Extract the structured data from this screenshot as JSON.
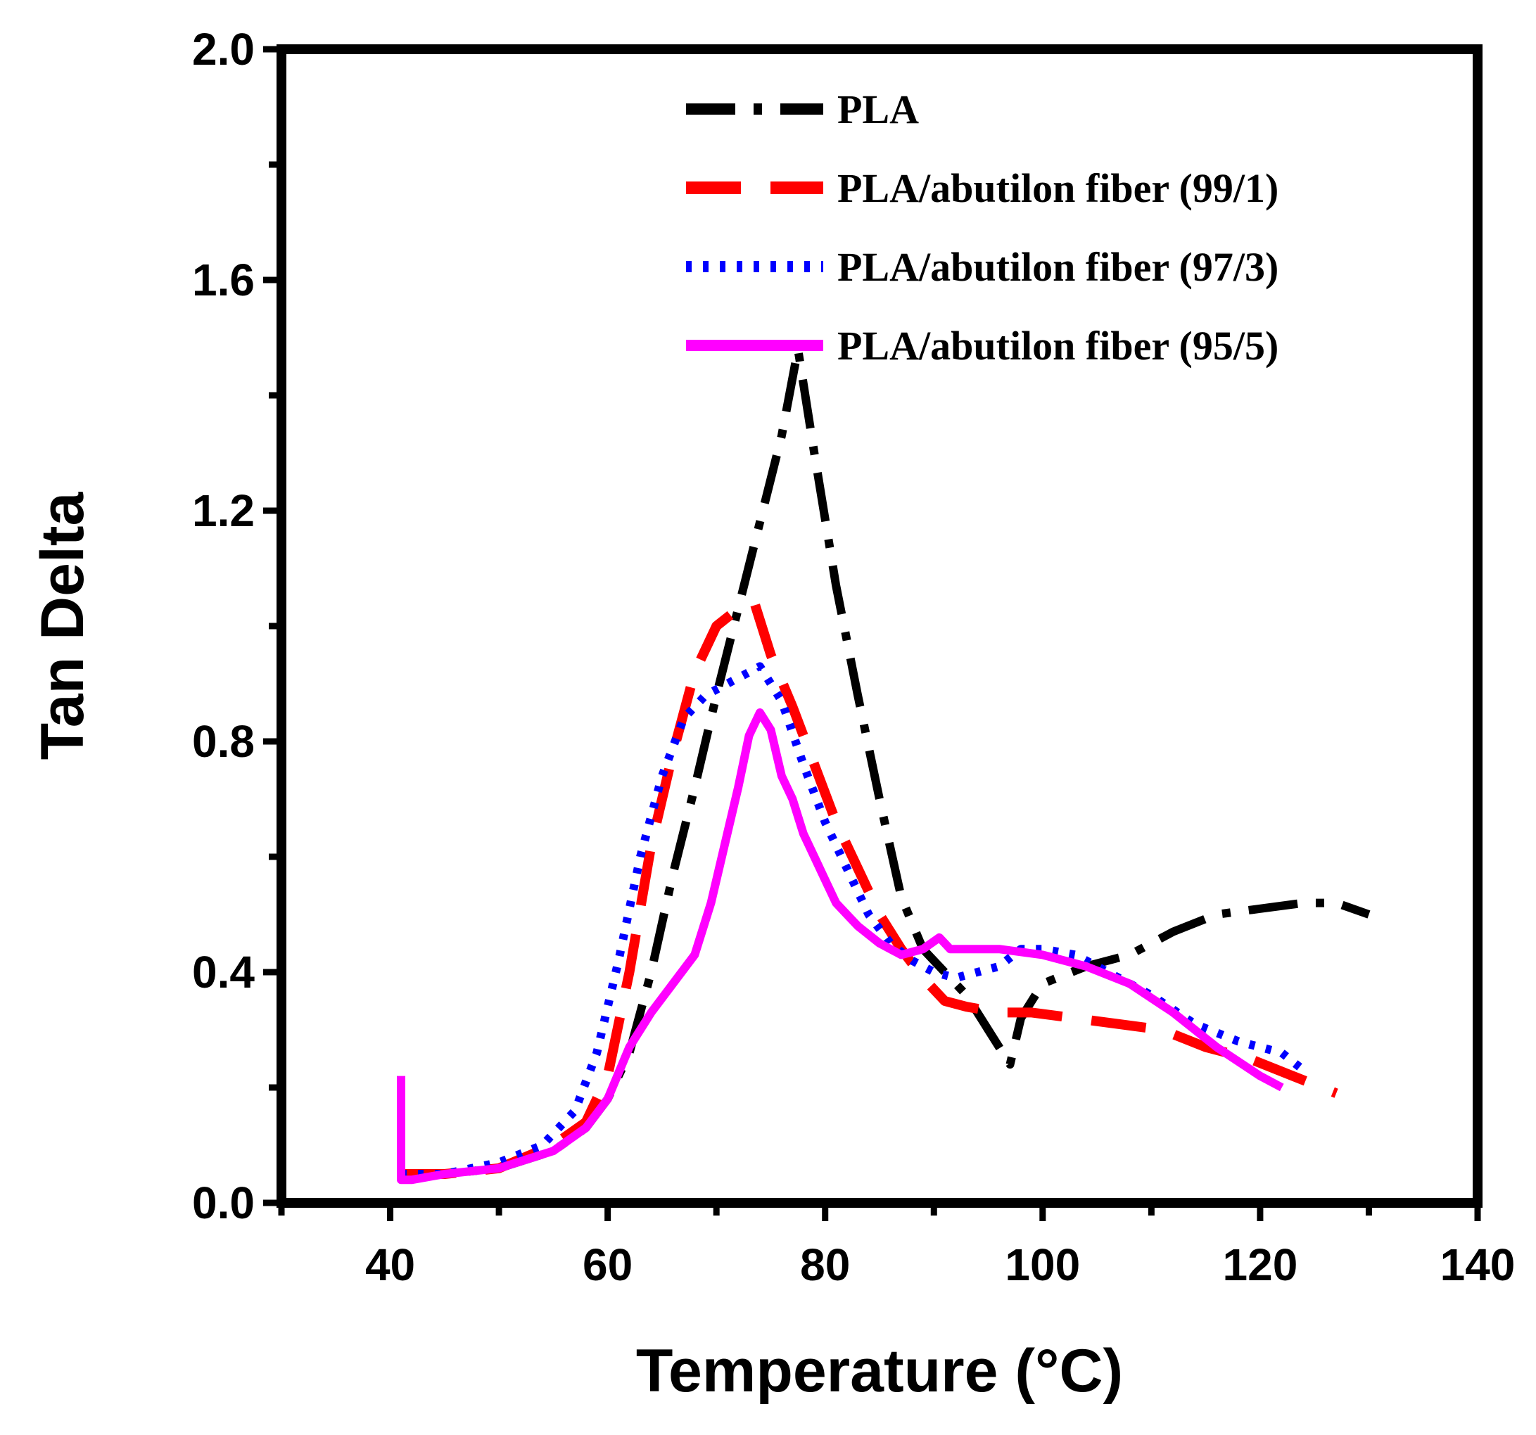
{
  "chart_data": {
    "type": "line",
    "title": "",
    "xlabel": "Temperature (°C)",
    "ylabel": "Tan Delta",
    "xlim": [
      30,
      140
    ],
    "ylim": [
      0.0,
      2.0
    ],
    "xticks": [
      40,
      60,
      80,
      100,
      120,
      140
    ],
    "xtick_labels": [
      "40",
      "60",
      "80",
      "100",
      "120",
      "140"
    ],
    "yticks": [
      0.0,
      0.4,
      0.8,
      1.2,
      1.6,
      2.0
    ],
    "ytick_labels": [
      "0.0",
      "0.4",
      "0.8",
      "1.2",
      "1.6",
      "2.0"
    ],
    "grid": false,
    "legend_position": "top-right",
    "series": [
      {
        "name": "PLA",
        "color": "#000000",
        "style": "dash-dot",
        "x": [
          41,
          45,
          50,
          55,
          58,
          60,
          62,
          64,
          66,
          68,
          70,
          72,
          74,
          76,
          77.5,
          79,
          81,
          83,
          85,
          87,
          89,
          91,
          93,
          95,
          96,
          97,
          98,
          100,
          104,
          108,
          112,
          116,
          120,
          124,
          127,
          130
        ],
        "y": [
          0.05,
          0.05,
          0.06,
          0.09,
          0.13,
          0.18,
          0.26,
          0.4,
          0.57,
          0.72,
          0.88,
          1.03,
          1.18,
          1.33,
          1.48,
          1.3,
          1.07,
          0.88,
          0.7,
          0.53,
          0.44,
          0.4,
          0.36,
          0.3,
          0.27,
          0.24,
          0.32,
          0.38,
          0.41,
          0.43,
          0.47,
          0.5,
          0.51,
          0.52,
          0.52,
          0.5
        ]
      },
      {
        "name": "PLA/abutilon fiber (99/1)",
        "color": "#ff0000",
        "style": "dashed",
        "x": [
          41,
          45,
          50,
          55,
          58,
          60,
          62,
          64,
          66,
          68,
          70,
          72,
          73.5,
          75,
          77,
          79,
          81,
          83,
          85,
          87,
          89,
          91,
          93,
          96,
          99,
          103,
          107,
          111,
          115,
          119,
          123,
          127
        ],
        "y": [
          0.05,
          0.05,
          0.06,
          0.1,
          0.14,
          0.22,
          0.4,
          0.62,
          0.78,
          0.92,
          1.0,
          1.03,
          1.04,
          0.95,
          0.86,
          0.76,
          0.66,
          0.58,
          0.5,
          0.44,
          0.39,
          0.35,
          0.34,
          0.33,
          0.33,
          0.32,
          0.31,
          0.3,
          0.27,
          0.25,
          0.22,
          0.19
        ]
      },
      {
        "name": "PLA/abutilon fiber (97/3)",
        "color": "#0000ff",
        "style": "dotted",
        "x": [
          41,
          45,
          50,
          54,
          57,
          59,
          61,
          63,
          65,
          67,
          69,
          71,
          73,
          74,
          76,
          78,
          80,
          82,
          84,
          86,
          88,
          90,
          92,
          94,
          96,
          98,
          100,
          103,
          106,
          110,
          114,
          118,
          122,
          124
        ],
        "y": [
          0.05,
          0.05,
          0.07,
          0.1,
          0.16,
          0.26,
          0.42,
          0.6,
          0.74,
          0.84,
          0.88,
          0.9,
          0.92,
          0.93,
          0.87,
          0.76,
          0.66,
          0.58,
          0.5,
          0.45,
          0.42,
          0.4,
          0.39,
          0.4,
          0.41,
          0.44,
          0.44,
          0.43,
          0.4,
          0.36,
          0.31,
          0.28,
          0.26,
          0.23
        ]
      },
      {
        "name": "PLA/abutilon fiber (95/5)",
        "color": "#ff00ff",
        "style": "solid",
        "x": [
          41,
          41,
          42,
          45,
          50,
          55,
          58,
          60,
          62,
          64,
          66,
          68,
          69.5,
          71,
          72,
          73,
          74,
          75,
          76,
          77,
          78,
          79,
          80,
          81,
          82,
          83,
          85,
          87,
          89,
          90.5,
          91.5,
          93,
          96,
          100,
          104,
          108,
          112,
          116,
          120,
          122
        ],
        "y": [
          0.22,
          0.04,
          0.04,
          0.05,
          0.06,
          0.09,
          0.13,
          0.18,
          0.27,
          0.33,
          0.38,
          0.43,
          0.52,
          0.64,
          0.72,
          0.81,
          0.85,
          0.82,
          0.74,
          0.7,
          0.64,
          0.6,
          0.56,
          0.52,
          0.5,
          0.48,
          0.45,
          0.43,
          0.44,
          0.46,
          0.44,
          0.44,
          0.44,
          0.43,
          0.41,
          0.38,
          0.33,
          0.27,
          0.22,
          0.2
        ]
      }
    ]
  }
}
